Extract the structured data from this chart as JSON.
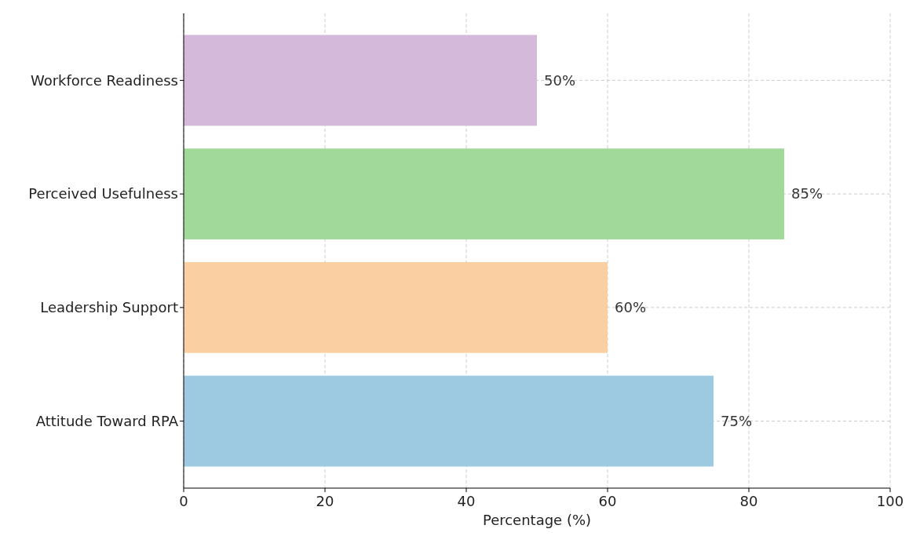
{
  "chart_data": {
    "type": "bar",
    "orientation": "horizontal",
    "xlabel": "Percentage (%)",
    "categories": [
      "Workforce Readiness",
      "Perceived Usefulness",
      "Leadership Support",
      "Attitude Toward RPA"
    ],
    "values": [
      50,
      85,
      60,
      75
    ],
    "colors": [
      "#d4b9da",
      "#a1d99b",
      "#fad0a2",
      "#9ecae1"
    ],
    "value_labels": [
      "50%",
      "85%",
      "60%",
      "75%"
    ],
    "xlim": [
      0,
      100
    ],
    "xticks": [
      0,
      20,
      40,
      60,
      80,
      100
    ],
    "grid": true
  }
}
